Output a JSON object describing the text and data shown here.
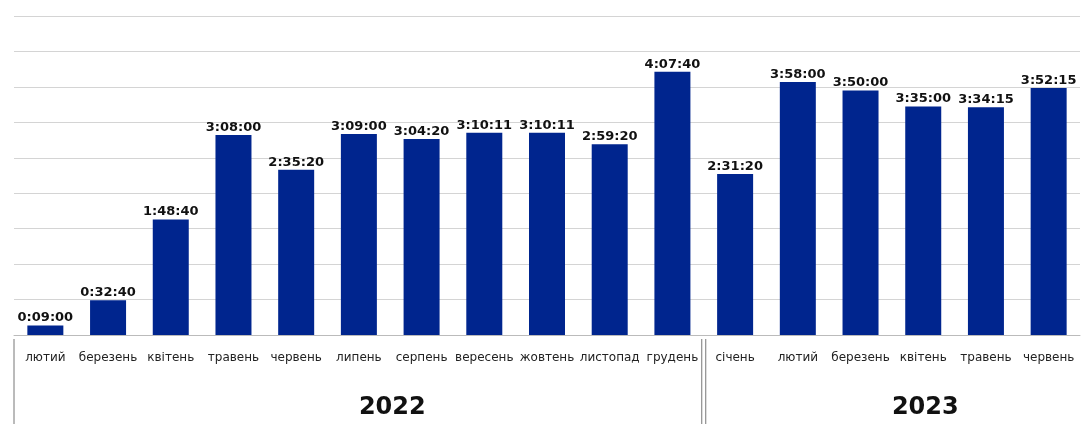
{
  "chart_data": {
    "type": "bar",
    "categories": [
      "лютий",
      "березень",
      "квітень",
      "травень",
      "червень",
      "липень",
      "серпень",
      "вересень",
      "жовтень",
      "листопад",
      "грудень",
      "січень",
      "лютий",
      "березень",
      "квітень",
      "травень",
      "червень"
    ],
    "values": [
      540,
      1960,
      6520,
      11280,
      9320,
      11340,
      11060,
      11411,
      11411,
      10760,
      14860,
      9080,
      14280,
      13800,
      12900,
      12855,
      13935
    ],
    "value_labels": [
      "0:09:00",
      "0:32:40",
      "1:48:40",
      "3:08:00",
      "2:35:20",
      "3:09:00",
      "3:04:20",
      "3:10:11",
      "3:10:11",
      "2:59:20",
      "4:07:40",
      "2:31:20",
      "3:58:00",
      "3:50:00",
      "3:35:00",
      "3:34:15",
      "3:52:15"
    ],
    "color": "#00258e",
    "ylim": [
      0,
      18000
    ],
    "yticks": [
      {
        "value": 0,
        "label": null
      },
      {
        "value": 2000,
        "label": null
      },
      {
        "value": 4000,
        "label": null
      },
      {
        "value": 6000,
        "label": null
      },
      {
        "value": 8000,
        "label": null
      },
      {
        "value": 10000,
        "label": null
      },
      {
        "value": 12000,
        "label": null
      },
      {
        "value": 14000,
        "label": null
      },
      {
        "value": 16000,
        "label": null
      },
      {
        "value": 18000,
        "label": null
      }
    ],
    "tick_labels": "x",
    "grid": "y",
    "annotations": [
      "2022",
      "2023"
    ]
  }
}
